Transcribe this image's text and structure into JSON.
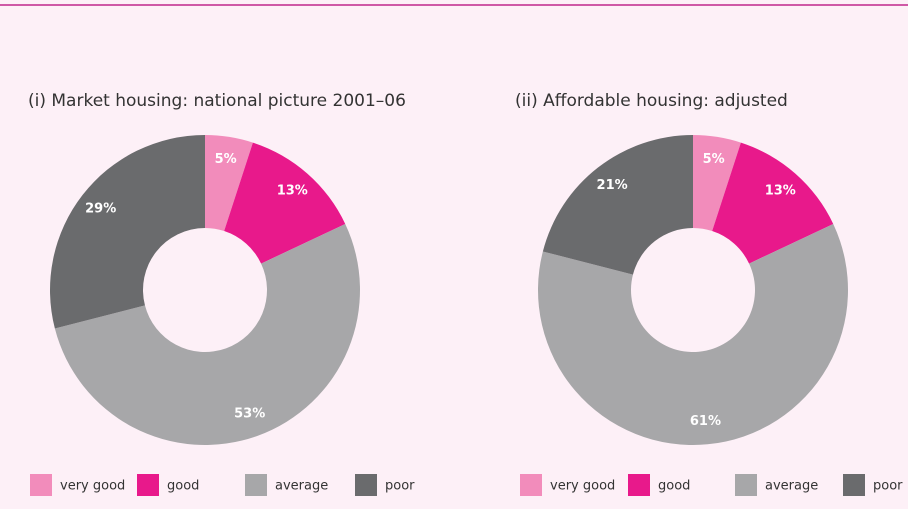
{
  "chart_data": [
    {
      "type": "donut",
      "title": "(i) Market housing: national picture 2001–06",
      "categories": [
        "very good",
        "good",
        "average",
        "poor"
      ],
      "values": [
        5,
        13,
        53,
        29
      ],
      "value_labels": [
        "5%",
        "13%",
        "53%",
        "29%"
      ],
      "colors": [
        "#f28cbb",
        "#e8198b",
        "#a7a7a9",
        "#6a6b6d"
      ]
    },
    {
      "type": "donut",
      "title": "(ii) Affordable housing: adjusted",
      "categories": [
        "very good",
        "good",
        "average",
        "poor"
      ],
      "values": [
        5,
        13,
        61,
        21
      ],
      "value_labels": [
        "5%",
        "13%",
        "61%",
        "21%"
      ],
      "colors": [
        "#f28cbb",
        "#e8198b",
        "#a7a7a9",
        "#6a6b6d"
      ]
    }
  ]
}
